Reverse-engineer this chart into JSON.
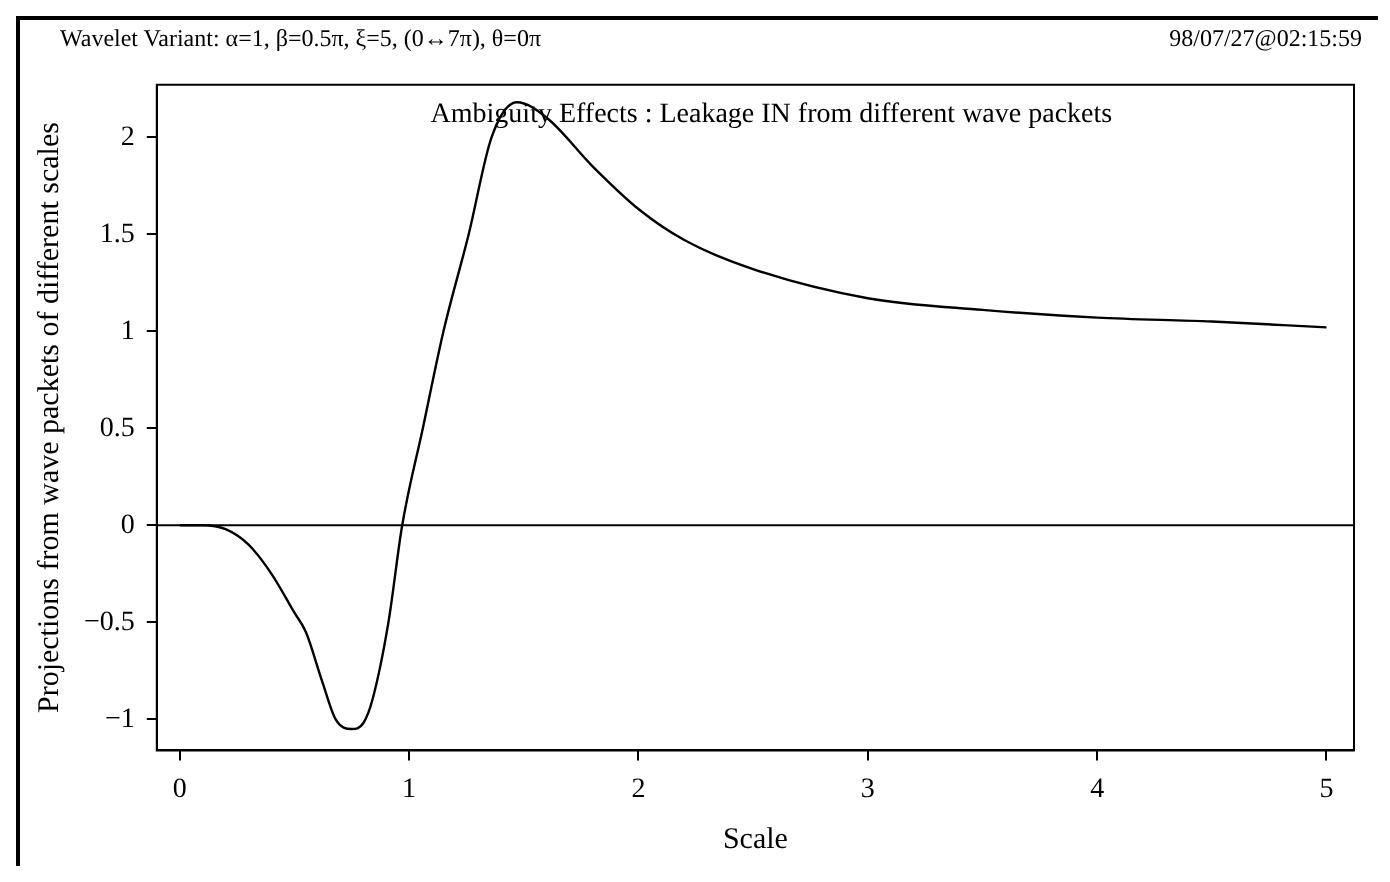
{
  "chart_data": {
    "type": "line",
    "title": "Wavelet Variant: α=1, β=0.5π, ξ=5, (0↔7π), θ=0π",
    "subtitle": "Ambiguity Effects : Leakage IN from different wave packets",
    "xlabel": "Scale",
    "ylabel": "Projections from wave packets of different scales",
    "annotations": [
      "98/07/27@02:15:59"
    ],
    "series": [
      {
        "color": "#000000",
        "x": [
          0,
          0.1,
          0.2,
          0.3,
          0.4,
          0.5,
          0.55,
          0.62,
          0.68,
          0.75,
          0.8,
          0.84,
          0.91,
          0.97,
          1.06,
          1.15,
          1.26,
          1.36,
          1.47,
          1.6,
          1.8,
          2.0,
          2.2,
          2.5,
          3,
          3.5,
          4,
          4.5,
          5
        ],
        "values": [
          0,
          0,
          -0.02,
          -0.1,
          -0.25,
          -0.45,
          -0.55,
          -0.8,
          -1,
          -1.05,
          -1.02,
          -0.9,
          -0.5,
          0,
          0.5,
          1,
          1.5,
          2,
          2.18,
          2.1,
          1.85,
          1.63,
          1.47,
          1.32,
          1.17,
          1.11,
          1.07,
          1.05,
          1.02
        ]
      }
    ],
    "xlim": [
      -0.1,
      5.12
    ],
    "ylim": [
      -1.16,
      2.27
    ],
    "xticks": [
      0,
      1,
      2,
      3,
      4,
      5
    ],
    "yticks": [
      -1,
      -0.5,
      0,
      0.5,
      1,
      1.5,
      2
    ],
    "ref_lines": [
      {
        "axis": "y",
        "value": 0,
        "color": "#000000"
      }
    ],
    "grid": false,
    "legend": false,
    "marker": "none",
    "line_style": "solid"
  }
}
